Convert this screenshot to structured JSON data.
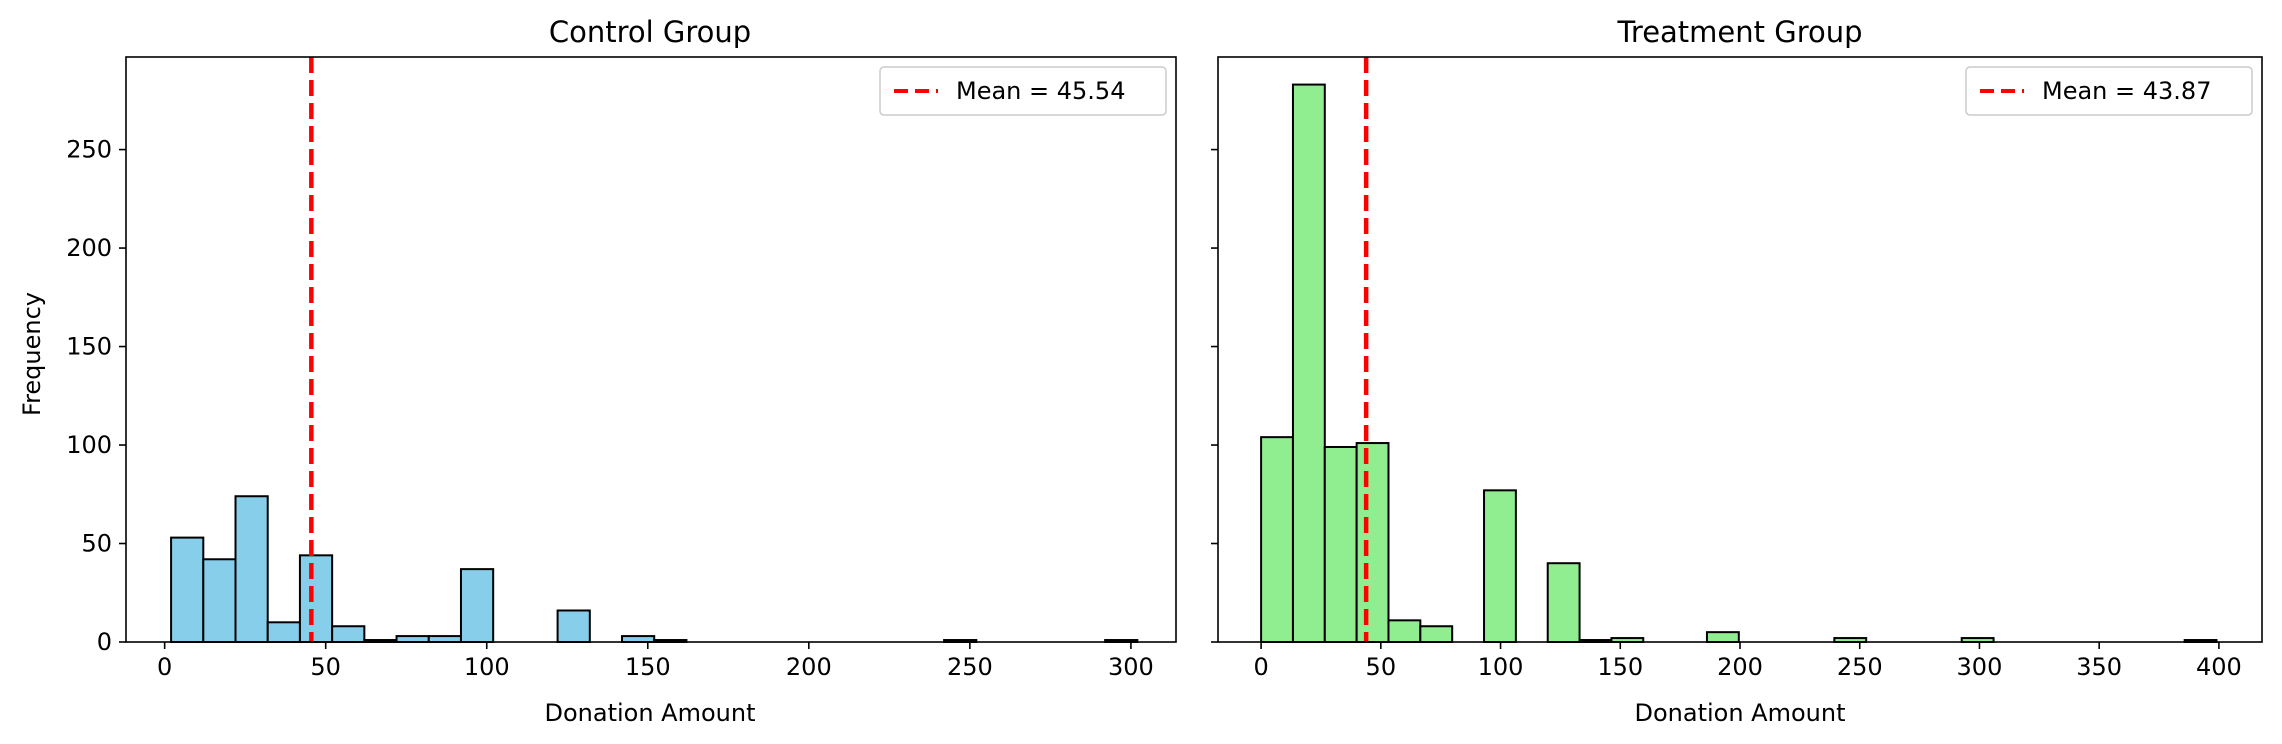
{
  "chart_data": [
    {
      "type": "bar",
      "subtype": "histogram",
      "title": "Control Group",
      "xlabel": "Donation Amount",
      "ylabel": "Frequency",
      "xlim": [
        -12,
        314
      ],
      "ylim": [
        0,
        297
      ],
      "xticks": [
        0,
        50,
        100,
        150,
        200,
        250,
        300
      ],
      "yticks": [
        0,
        50,
        100,
        150,
        200,
        250
      ],
      "bin_width": 10,
      "bins": [
        {
          "x0": 2,
          "x1": 12,
          "count": 53
        },
        {
          "x0": 12,
          "x1": 22,
          "count": 42
        },
        {
          "x0": 22,
          "x1": 32,
          "count": 74
        },
        {
          "x0": 32,
          "x1": 42,
          "count": 10
        },
        {
          "x0": 42,
          "x1": 52,
          "count": 44
        },
        {
          "x0": 52,
          "x1": 62,
          "count": 8
        },
        {
          "x0": 62,
          "x1": 72,
          "count": 1
        },
        {
          "x0": 72,
          "x1": 82,
          "count": 3
        },
        {
          "x0": 82,
          "x1": 92,
          "count": 3
        },
        {
          "x0": 92,
          "x1": 102,
          "count": 37
        },
        {
          "x0": 122,
          "x1": 132,
          "count": 16
        },
        {
          "x0": 142,
          "x1": 152,
          "count": 3
        },
        {
          "x0": 152,
          "x1": 162,
          "count": 1
        },
        {
          "x0": 242,
          "x1": 252,
          "count": 1
        },
        {
          "x0": 292,
          "x1": 302,
          "count": 1
        }
      ],
      "bar_color": "#87ceeb",
      "mean": 45.54,
      "mean_label": "Mean = 45.54",
      "mean_line_color": "#ff0000",
      "legend_position": "top-right"
    },
    {
      "type": "bar",
      "subtype": "histogram",
      "title": "Treatment Group",
      "xlabel": "Donation Amount",
      "ylabel": "",
      "xlim": [
        -18,
        418
      ],
      "ylim": [
        0,
        297
      ],
      "xticks": [
        0,
        50,
        100,
        150,
        200,
        250,
        300,
        350,
        400
      ],
      "yticks": [
        0,
        50,
        100,
        150,
        200,
        250
      ],
      "bin_width": 13.3,
      "bins": [
        {
          "x0": 0,
          "x1": 13.3,
          "count": 104
        },
        {
          "x0": 13.3,
          "x1": 26.6,
          "count": 283
        },
        {
          "x0": 26.6,
          "x1": 39.9,
          "count": 99
        },
        {
          "x0": 39.9,
          "x1": 53.2,
          "count": 101
        },
        {
          "x0": 53.2,
          "x1": 66.5,
          "count": 11
        },
        {
          "x0": 66.5,
          "x1": 79.8,
          "count": 8
        },
        {
          "x0": 93.1,
          "x1": 106.4,
          "count": 77
        },
        {
          "x0": 119.7,
          "x1": 133.0,
          "count": 40
        },
        {
          "x0": 133.0,
          "x1": 146.3,
          "count": 1
        },
        {
          "x0": 146.3,
          "x1": 159.6,
          "count": 2
        },
        {
          "x0": 186.2,
          "x1": 199.5,
          "count": 5
        },
        {
          "x0": 239.4,
          "x1": 252.7,
          "count": 2
        },
        {
          "x0": 292.6,
          "x1": 305.9,
          "count": 2
        },
        {
          "x0": 385.7,
          "x1": 399.0,
          "count": 1
        }
      ],
      "bar_color": "#90ee90",
      "mean": 43.87,
      "mean_label": "Mean = 43.87",
      "mean_line_color": "#ff0000",
      "legend_position": "top-right",
      "shared_y": true
    }
  ]
}
